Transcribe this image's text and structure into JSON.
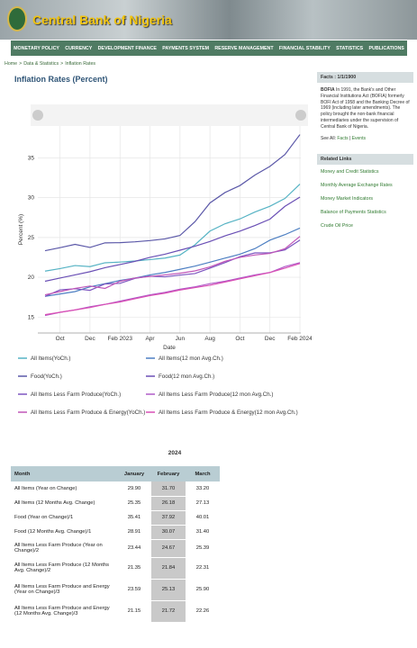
{
  "header": {
    "title": "Central Bank of Nigeria"
  },
  "nav": [
    "MONETARY POLICY",
    "CURRENCY",
    "DEVELOPMENT FINANCE",
    "PAYMENTS SYSTEM",
    "RESERVE MANAGEMENT",
    "FINANCIAL STABILITY",
    "STATISTICS",
    "PUBLICATIONS"
  ],
  "breadcrumb": {
    "items": [
      "Home",
      "Data & Statistics",
      "Inflation Rates"
    ],
    "separator": ">"
  },
  "chart_data": {
    "type": "line",
    "title": "Inflation Rates (Percent)",
    "x_label": "Date",
    "y_label": "Percent (%)",
    "categories": [
      null,
      "Oct",
      null,
      "Dec",
      null,
      "Feb 2023",
      null,
      "Apr",
      null,
      "Jun",
      null,
      "Aug",
      null,
      "Oct",
      null,
      "Dec",
      null,
      "Feb 2024"
    ],
    "ylim": [
      13,
      39
    ],
    "yticks": [
      15,
      20,
      25,
      30,
      35
    ],
    "grid": true,
    "series": [
      {
        "name": "All Items(YoCh.)",
        "color": "#56b3c4",
        "values": [
          20.77,
          21.09,
          21.47,
          21.34,
          21.82,
          21.91,
          22.04,
          22.22,
          22.41,
          22.79,
          24.08,
          25.8,
          26.72,
          27.33,
          28.2,
          28.92,
          29.9,
          31.7
        ]
      },
      {
        "name": "All Items(12 mon Avg.Ch.)",
        "color": "#4d7fc2",
        "values": [
          17.6,
          17.9,
          18.2,
          18.8,
          19.2,
          19.6,
          19.9,
          20.3,
          20.6,
          21.0,
          21.4,
          21.9,
          22.4,
          22.9,
          23.6,
          24.66,
          25.35,
          26.18
        ]
      },
      {
        "name": "Food(YoCh.)",
        "color": "#5b58a8",
        "values": [
          23.34,
          23.72,
          24.13,
          23.75,
          24.32,
          24.35,
          24.45,
          24.61,
          24.82,
          25.25,
          26.98,
          29.34,
          30.64,
          31.52,
          32.84,
          33.93,
          35.41,
          37.92
        ]
      },
      {
        "name": "Food(12 mon Avg.Ch.)",
        "color": "#6a4fb5",
        "values": [
          19.5,
          19.9,
          20.3,
          20.7,
          21.2,
          21.6,
          22.0,
          22.5,
          22.9,
          23.4,
          23.9,
          24.5,
          25.2,
          25.8,
          26.5,
          27.3,
          28.91,
          30.07
        ]
      },
      {
        "name": "All Items Less Farm Produce(YoCh.)",
        "color": "#7d55c0",
        "values": [
          17.6,
          18.42,
          18.56,
          18.36,
          19.16,
          19.24,
          19.86,
          20.14,
          20.06,
          20.27,
          20.47,
          21.15,
          21.84,
          22.59,
          23.06,
          23.06,
          23.44,
          24.67
        ]
      },
      {
        "name": "All Items Less Farm Produce(12 mon Avg.Ch.)",
        "color": "#b05cc8",
        "values": [
          15.2,
          15.6,
          15.9,
          16.3,
          16.6,
          17.0,
          17.4,
          17.8,
          18.1,
          18.5,
          18.8,
          19.2,
          19.5,
          19.9,
          20.3,
          20.6,
          21.35,
          21.84
        ]
      },
      {
        "name": "All Items Less Farm Produce & Energy(YoCh.)",
        "color": "#c056b8",
        "values": [
          17.8,
          18.2,
          18.6,
          18.9,
          18.6,
          19.5,
          19.9,
          20.1,
          20.3,
          20.5,
          20.8,
          21.3,
          22.0,
          22.5,
          22.8,
          23.0,
          23.59,
          25.13
        ]
      },
      {
        "name": "All Items Less Farm Produce & Energy(12 mon Avg.Ch.)",
        "color": "#d94fb5",
        "values": [
          15.3,
          15.6,
          15.9,
          16.2,
          16.6,
          16.9,
          17.3,
          17.7,
          18.0,
          18.4,
          18.7,
          19.0,
          19.4,
          19.8,
          20.2,
          20.6,
          21.15,
          21.72
        ]
      }
    ]
  },
  "table": {
    "caption": "2024",
    "columns": [
      "Month",
      "January",
      "February",
      "March"
    ],
    "rows": [
      [
        "All Items (Year on Change)",
        "29.90",
        "31.70",
        "33.20"
      ],
      [
        "All Items (12 Months Avg. Change)",
        "25.35",
        "26.18",
        "27.13"
      ],
      [
        "Food (Year on Change)/1",
        "35.41",
        "37.92",
        "40.01"
      ],
      [
        "Food (12 Months Avg. Change)/1",
        "28.91",
        "30.07",
        "31.40"
      ],
      [
        "All Items Less Farm Produce (Year on Change)/2",
        "23.44",
        "24.67",
        "25.39"
      ],
      [
        "All Items Less Farm Produce (12 Months Avg. Change)/2",
        "21.35",
        "21.84",
        "22.31"
      ],
      [
        "All Items Less Farm Produce and Energy (Year on Change)/3",
        "23.59",
        "25.13",
        "25.90"
      ],
      [
        "All Items Less Farm Produce and Energy (12 Months Avg. Change)/3",
        "21.15",
        "21.72",
        "22.26"
      ]
    ]
  },
  "sidebar": {
    "facts": {
      "title": "Facts : 1/1/1900",
      "term": "BOFIA",
      "text": " In 1991, the Bank's and Other Financial Institutions Act (BOFIA) formerly BOFI Act of 1958 and the Banking Decree of 1969 (including later amendments). The policy brought the non-bank financial intermediaries under the supervision of Central Bank of Nigeria.",
      "see_all": "See All:",
      "links": [
        "Facts",
        "Events"
      ],
      "separator": "|"
    },
    "related": {
      "title": "Related Links",
      "links": [
        "Money and Credit Statistics",
        "Monthly Average Exchange Rates",
        "Money Market Indicators",
        "Balance of Payments Statistics",
        "Crude Oil Price"
      ]
    }
  }
}
